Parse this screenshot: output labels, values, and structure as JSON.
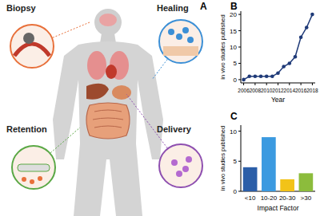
{
  "diagram": {
    "label": "A",
    "callouts": [
      {
        "label": "Biopsy"
      },
      {
        "label": "Healing"
      },
      {
        "label": "Retention"
      },
      {
        "label": "Delivery"
      }
    ]
  },
  "chart_data": [
    {
      "type": "line",
      "panel_label": "B",
      "x_label": "Year",
      "y_label": "in vivo studies published",
      "x": [
        2006,
        2007,
        2008,
        2009,
        2010,
        2011,
        2012,
        2013,
        2014,
        2015,
        2016,
        2017,
        2018
      ],
      "values": [
        0,
        1,
        1,
        1,
        1,
        1,
        2,
        4,
        5,
        7,
        13,
        16,
        20
      ],
      "color": "#1f3a78",
      "marker": "circle",
      "xlim": [
        2005.5,
        2018.5
      ],
      "xticks": [
        2006,
        2008,
        2010,
        2012,
        2014,
        2016,
        2018
      ],
      "ylim": [
        -1,
        21
      ],
      "yticks": [
        0,
        5,
        10,
        15,
        20
      ]
    },
    {
      "type": "bar",
      "panel_label": "C",
      "x_label": "Impact Factor",
      "y_label": "in vivo studies published",
      "categories": [
        "<10",
        "10-20",
        "20-30",
        ">30"
      ],
      "values": [
        4,
        9,
        2,
        3
      ],
      "colors": [
        "#2b5ea8",
        "#3b9ae0",
        "#f2c318",
        "#8cbc3c"
      ],
      "ylim": [
        0,
        11
      ],
      "yticks": [
        0,
        5,
        10
      ]
    }
  ]
}
